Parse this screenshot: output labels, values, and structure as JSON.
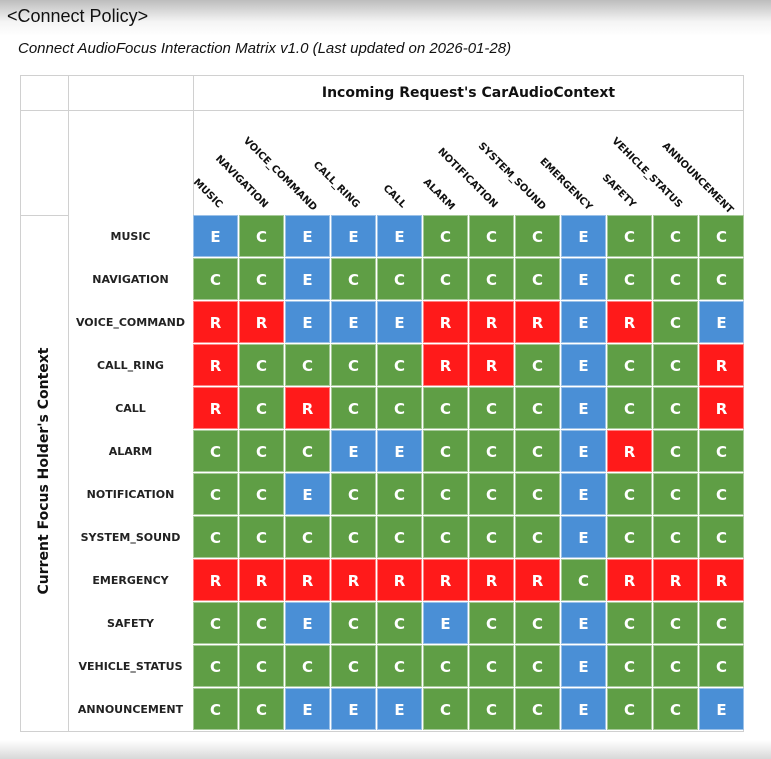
{
  "header": {
    "title": "<Connect Policy>"
  },
  "subtitle": "Connect AudioFocus Interaction Matrix v1.0 (Last updated on 2026-01-28)",
  "matrix": {
    "column_group_label": "Incoming Request's CarAudioContext",
    "row_group_label": "Current Focus Holder's Context",
    "columns": [
      "MUSIC",
      "NAVIGATION",
      "VOICE_COMMAND",
      "CALL_RING",
      "CALL",
      "ALARM",
      "NOTIFICATION",
      "SYSTEM_SOUND",
      "EMERGENCY",
      "SAFETY",
      "VEHICLE_STATUS",
      "ANNOUNCEMENT"
    ],
    "rows": [
      {
        "label": "MUSIC",
        "values": [
          "E",
          "C",
          "E",
          "E",
          "E",
          "C",
          "C",
          "C",
          "E",
          "C",
          "C",
          "C"
        ]
      },
      {
        "label": "NAVIGATION",
        "values": [
          "C",
          "C",
          "E",
          "C",
          "C",
          "C",
          "C",
          "C",
          "E",
          "C",
          "C",
          "C"
        ]
      },
      {
        "label": "VOICE_COMMAND",
        "values": [
          "R",
          "R",
          "E",
          "E",
          "E",
          "R",
          "R",
          "R",
          "E",
          "R",
          "C",
          "E"
        ]
      },
      {
        "label": "CALL_RING",
        "values": [
          "R",
          "C",
          "C",
          "C",
          "C",
          "R",
          "R",
          "C",
          "E",
          "C",
          "C",
          "R"
        ]
      },
      {
        "label": "CALL",
        "values": [
          "R",
          "C",
          "R",
          "C",
          "C",
          "C",
          "C",
          "C",
          "E",
          "C",
          "C",
          "R"
        ]
      },
      {
        "label": "ALARM",
        "values": [
          "C",
          "C",
          "C",
          "E",
          "E",
          "C",
          "C",
          "C",
          "E",
          "R",
          "C",
          "C"
        ]
      },
      {
        "label": "NOTIFICATION",
        "values": [
          "C",
          "C",
          "E",
          "C",
          "C",
          "C",
          "C",
          "C",
          "E",
          "C",
          "C",
          "C"
        ]
      },
      {
        "label": "SYSTEM_SOUND",
        "values": [
          "C",
          "C",
          "C",
          "C",
          "C",
          "C",
          "C",
          "C",
          "E",
          "C",
          "C",
          "C"
        ]
      },
      {
        "label": "EMERGENCY",
        "values": [
          "R",
          "R",
          "R",
          "R",
          "R",
          "R",
          "R",
          "R",
          "C",
          "R",
          "R",
          "R"
        ]
      },
      {
        "label": "SAFETY",
        "values": [
          "C",
          "C",
          "E",
          "C",
          "C",
          "E",
          "C",
          "C",
          "E",
          "C",
          "C",
          "C"
        ]
      },
      {
        "label": "VEHICLE_STATUS",
        "values": [
          "C",
          "C",
          "C",
          "C",
          "C",
          "C",
          "C",
          "C",
          "E",
          "C",
          "C",
          "C"
        ]
      },
      {
        "label": "ANNOUNCEMENT",
        "values": [
          "C",
          "C",
          "E",
          "E",
          "E",
          "C",
          "C",
          "C",
          "E",
          "C",
          "C",
          "E"
        ]
      }
    ],
    "colors": {
      "C": "#5f9e45",
      "E": "#4a8fd6",
      "R": "#ff1a1a"
    }
  }
}
